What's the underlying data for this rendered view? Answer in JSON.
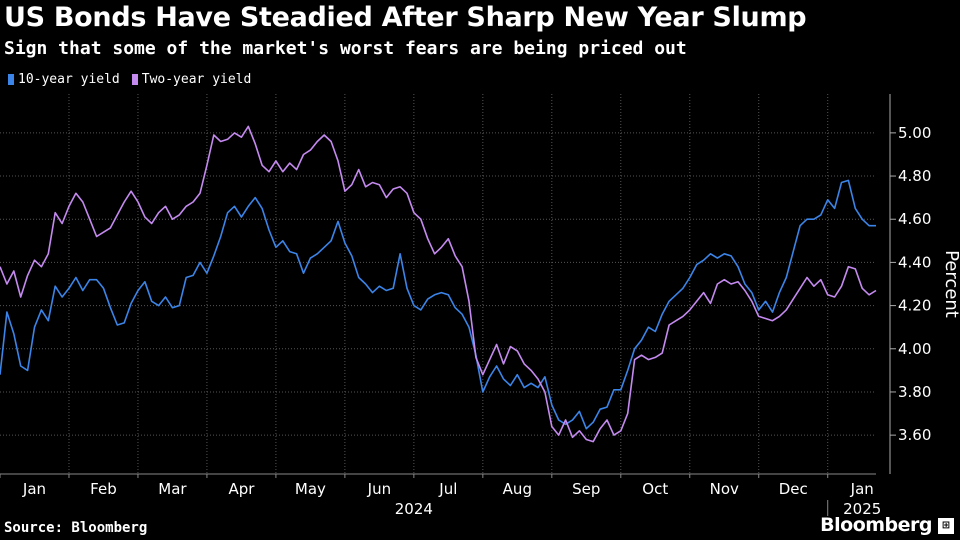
{
  "header": {
    "title": "US Bonds Have Steadied After Sharp New Year Slump",
    "subtitle": "Sign that some of the market's worst fears are being priced out"
  },
  "footer": {
    "source": "Source: Bloomberg",
    "brand": "Bloomberg"
  },
  "colors": {
    "ten_year": "#3b84e8",
    "two_year": "#c58af0",
    "grid": "#555555",
    "background": "#000000"
  },
  "chart_data": {
    "type": "line",
    "title": "US Bonds Have Steadied After Sharp New Year Slump",
    "subtitle": "Sign that some of the market's worst fears are being priced out",
    "xlabel": "",
    "ylabel": "Percent",
    "ylim": [
      3.42,
      5.18
    ],
    "yticks": [
      3.6,
      3.8,
      4.0,
      4.2,
      4.4,
      4.6,
      4.8,
      5.0
    ],
    "ytick_labels": [
      "3.60",
      "3.80",
      "4.00",
      "4.20",
      "4.40",
      "4.60",
      "4.80",
      "5.00"
    ],
    "xlim": [
      0,
      12.7
    ],
    "months": [
      {
        "label": "Jan",
        "pos": 0.5
      },
      {
        "label": "Feb",
        "pos": 1.5
      },
      {
        "label": "Mar",
        "pos": 2.5
      },
      {
        "label": "Apr",
        "pos": 3.5
      },
      {
        "label": "May",
        "pos": 4.5
      },
      {
        "label": "Jun",
        "pos": 5.5
      },
      {
        "label": "Jul",
        "pos": 6.5
      },
      {
        "label": "Aug",
        "pos": 7.5
      },
      {
        "label": "Sep",
        "pos": 8.5
      },
      {
        "label": "Oct",
        "pos": 9.5
      },
      {
        "label": "Nov",
        "pos": 10.5
      },
      {
        "label": "Dec",
        "pos": 11.5
      },
      {
        "label": "Jan",
        "pos": 12.5
      }
    ],
    "year_labels": [
      {
        "label": "2024",
        "pos": 6.0
      },
      {
        "label": "2025",
        "pos": 12.5
      }
    ],
    "legend_placement": "top-left",
    "grid": true,
    "series": [
      {
        "name": "10-year yield",
        "x": [
          0.0,
          0.1,
          0.2,
          0.3,
          0.4,
          0.5,
          0.6,
          0.7,
          0.8,
          0.9,
          1.0,
          1.1,
          1.2,
          1.3,
          1.4,
          1.5,
          1.6,
          1.7,
          1.8,
          1.9,
          2.0,
          2.1,
          2.2,
          2.3,
          2.4,
          2.5,
          2.6,
          2.7,
          2.8,
          2.9,
          3.0,
          3.1,
          3.2,
          3.3,
          3.4,
          3.5,
          3.6,
          3.7,
          3.8,
          3.9,
          4.0,
          4.1,
          4.2,
          4.3,
          4.4,
          4.5,
          4.6,
          4.7,
          4.8,
          4.9,
          5.0,
          5.1,
          5.2,
          5.3,
          5.4,
          5.5,
          5.6,
          5.7,
          5.8,
          5.9,
          6.0,
          6.1,
          6.2,
          6.3,
          6.4,
          6.5,
          6.6,
          6.7,
          6.8,
          6.9,
          7.0,
          7.1,
          7.2,
          7.3,
          7.4,
          7.5,
          7.6,
          7.7,
          7.8,
          7.9,
          8.0,
          8.1,
          8.2,
          8.3,
          8.4,
          8.5,
          8.6,
          8.7,
          8.8,
          8.9,
          9.0,
          9.1,
          9.2,
          9.3,
          9.4,
          9.5,
          9.6,
          9.7,
          9.8,
          9.9,
          10.0,
          10.1,
          10.2,
          10.3,
          10.4,
          10.5,
          10.6,
          10.7,
          10.8,
          10.9,
          11.0,
          11.1,
          11.2,
          11.3,
          11.4,
          11.5,
          11.6,
          11.7,
          11.8,
          11.9,
          12.0,
          12.1,
          12.2,
          12.3,
          12.4,
          12.5,
          12.6,
          12.7
        ],
        "values": [
          3.88,
          4.17,
          4.07,
          3.92,
          3.9,
          4.1,
          4.18,
          4.13,
          4.29,
          4.24,
          4.28,
          4.33,
          4.27,
          4.32,
          4.32,
          4.28,
          4.19,
          4.11,
          4.12,
          4.21,
          4.27,
          4.31,
          4.22,
          4.2,
          4.24,
          4.19,
          4.2,
          4.33,
          4.34,
          4.4,
          4.35,
          4.43,
          4.52,
          4.63,
          4.66,
          4.61,
          4.66,
          4.7,
          4.65,
          4.55,
          4.47,
          4.5,
          4.45,
          4.44,
          4.35,
          4.42,
          4.44,
          4.47,
          4.5,
          4.59,
          4.49,
          4.43,
          4.33,
          4.3,
          4.26,
          4.29,
          4.27,
          4.28,
          4.44,
          4.28,
          4.2,
          4.18,
          4.23,
          4.25,
          4.26,
          4.25,
          4.19,
          4.16,
          4.1,
          3.97,
          3.8,
          3.87,
          3.92,
          3.86,
          3.83,
          3.88,
          3.82,
          3.84,
          3.82,
          3.87,
          3.74,
          3.67,
          3.65,
          3.67,
          3.71,
          3.63,
          3.66,
          3.72,
          3.73,
          3.81,
          3.81,
          3.9,
          4.0,
          4.04,
          4.1,
          4.08,
          4.16,
          4.22,
          4.25,
          4.28,
          4.33,
          4.39,
          4.41,
          4.44,
          4.42,
          4.44,
          4.43,
          4.38,
          4.3,
          4.26,
          4.18,
          4.22,
          4.17,
          4.26,
          4.33,
          4.45,
          4.57,
          4.6,
          4.6,
          4.62,
          4.69,
          4.65,
          4.77,
          4.78,
          4.65,
          4.6,
          4.57,
          4.57
        ]
      },
      {
        "name": "Two-year yield",
        "x": [
          0.0,
          0.1,
          0.2,
          0.3,
          0.4,
          0.5,
          0.6,
          0.7,
          0.8,
          0.9,
          1.0,
          1.1,
          1.2,
          1.3,
          1.4,
          1.5,
          1.6,
          1.7,
          1.8,
          1.9,
          2.0,
          2.1,
          2.2,
          2.3,
          2.4,
          2.5,
          2.6,
          2.7,
          2.8,
          2.9,
          3.0,
          3.1,
          3.2,
          3.3,
          3.4,
          3.5,
          3.6,
          3.7,
          3.8,
          3.9,
          4.0,
          4.1,
          4.2,
          4.3,
          4.4,
          4.5,
          4.6,
          4.7,
          4.8,
          4.9,
          5.0,
          5.1,
          5.2,
          5.3,
          5.4,
          5.5,
          5.6,
          5.7,
          5.8,
          5.9,
          6.0,
          6.1,
          6.2,
          6.3,
          6.4,
          6.5,
          6.6,
          6.7,
          6.8,
          6.9,
          7.0,
          7.1,
          7.2,
          7.3,
          7.4,
          7.5,
          7.6,
          7.7,
          7.8,
          7.9,
          8.0,
          8.1,
          8.2,
          8.3,
          8.4,
          8.5,
          8.6,
          8.7,
          8.8,
          8.9,
          9.0,
          9.1,
          9.2,
          9.3,
          9.4,
          9.5,
          9.6,
          9.7,
          9.8,
          9.9,
          10.0,
          10.1,
          10.2,
          10.3,
          10.4,
          10.5,
          10.6,
          10.7,
          10.8,
          10.9,
          11.0,
          11.1,
          11.2,
          11.3,
          11.4,
          11.5,
          11.6,
          11.7,
          11.8,
          11.9,
          12.0,
          12.1,
          12.2,
          12.3,
          12.4,
          12.5,
          12.6,
          12.7
        ],
        "values": [
          4.38,
          4.3,
          4.36,
          4.24,
          4.34,
          4.41,
          4.38,
          4.44,
          4.63,
          4.58,
          4.66,
          4.72,
          4.68,
          4.6,
          4.52,
          4.54,
          4.56,
          4.62,
          4.68,
          4.73,
          4.68,
          4.61,
          4.58,
          4.63,
          4.66,
          4.6,
          4.62,
          4.66,
          4.68,
          4.72,
          4.85,
          4.99,
          4.96,
          4.97,
          5.0,
          4.98,
          5.03,
          4.95,
          4.85,
          4.82,
          4.87,
          4.82,
          4.86,
          4.83,
          4.9,
          4.92,
          4.96,
          4.99,
          4.96,
          4.87,
          4.73,
          4.76,
          4.83,
          4.75,
          4.77,
          4.76,
          4.7,
          4.74,
          4.75,
          4.72,
          4.63,
          4.6,
          4.51,
          4.44,
          4.47,
          4.51,
          4.43,
          4.38,
          4.22,
          3.96,
          3.88,
          3.95,
          4.02,
          3.93,
          4.01,
          3.99,
          3.93,
          3.9,
          3.86,
          3.8,
          3.64,
          3.6,
          3.67,
          3.59,
          3.62,
          3.58,
          3.57,
          3.63,
          3.67,
          3.6,
          3.62,
          3.7,
          3.95,
          3.97,
          3.95,
          3.96,
          3.98,
          4.11,
          4.13,
          4.15,
          4.18,
          4.22,
          4.26,
          4.21,
          4.3,
          4.32,
          4.3,
          4.31,
          4.27,
          4.22,
          4.15,
          4.14,
          4.13,
          4.15,
          4.18,
          4.23,
          4.28,
          4.33,
          4.29,
          4.32,
          4.25,
          4.24,
          4.29,
          4.38,
          4.37,
          4.28,
          4.25,
          4.27
        ]
      }
    ]
  }
}
